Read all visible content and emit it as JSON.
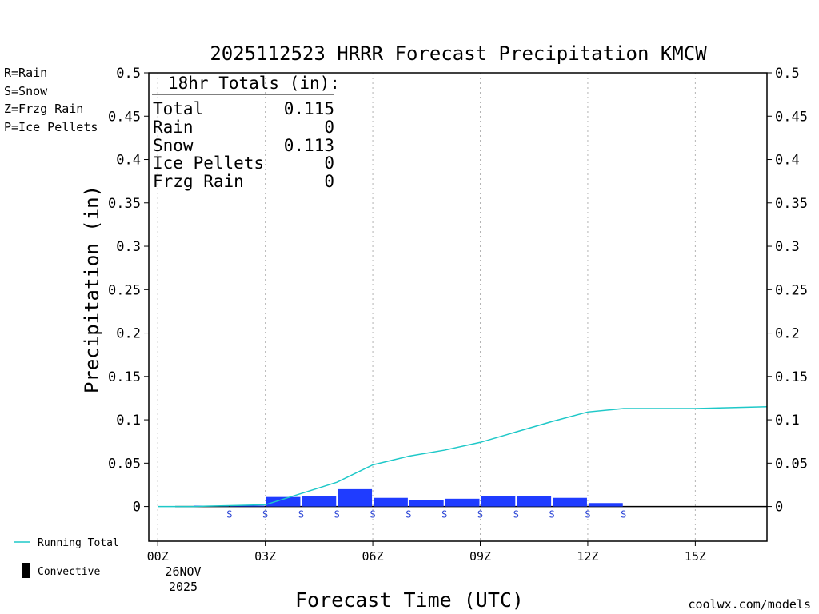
{
  "chart_data": {
    "type": "bar",
    "title": "2025112523 HRRR Forecast Precipitation KMCW",
    "xlabel": "Forecast Time (UTC)",
    "ylabel": "Precipitation (in)",
    "xlim": [
      -0.25,
      17
    ],
    "ylim": [
      -0.04,
      0.5
    ],
    "y_ticks": [
      0,
      0.05,
      0.1,
      0.15,
      0.2,
      0.25,
      0.3,
      0.35,
      0.4,
      0.45,
      0.5
    ],
    "y_tick_labels": [
      "0",
      "0.05",
      "0.1",
      "0.15",
      "0.2",
      "0.25",
      "0.3",
      "0.35",
      "0.4",
      "0.45",
      "0.5"
    ],
    "x_ticks": [
      0,
      3,
      6,
      9,
      12,
      15
    ],
    "x_tick_labels": [
      "00Z",
      "03Z",
      "06Z",
      "09Z",
      "12Z",
      "15Z"
    ],
    "x_date_label": [
      "26NOV",
      "2025"
    ],
    "grid_x": true,
    "bar_series": {
      "name": "Snow",
      "color": "#1f3cff",
      "hours": [
        1,
        2,
        3,
        4,
        5,
        6,
        7,
        8,
        9,
        10,
        11,
        12,
        13,
        14,
        15,
        16,
        17
      ],
      "values": [
        0,
        0.001,
        0.001,
        0.011,
        0.012,
        0.02,
        0.01,
        0.007,
        0.009,
        0.012,
        0.012,
        0.01,
        0.004,
        0,
        0,
        0,
        0
      ]
    },
    "ptype_markers": {
      "color": "#2a44d6",
      "hours": [
        2,
        3,
        4,
        5,
        6,
        7,
        8,
        9,
        10,
        11,
        12,
        13
      ],
      "labels": [
        "S",
        "S",
        "S",
        "S",
        "S",
        "S",
        "S",
        "S",
        "S",
        "S",
        "S",
        "S"
      ]
    },
    "running_total": {
      "name": "Running Total",
      "color": "#1ec8c8",
      "hours": [
        0,
        1,
        2,
        3,
        4,
        5,
        6,
        7,
        8,
        9,
        10,
        11,
        12,
        13,
        14,
        15,
        16,
        17
      ],
      "values": [
        0,
        0,
        0.001,
        0.002,
        0.015,
        0.028,
        0.048,
        0.058,
        0.065,
        0.074,
        0.086,
        0.098,
        0.109,
        0.113,
        0.113,
        0.113,
        0.114,
        0.115
      ]
    },
    "totals_box": {
      "header": "18hr Totals (in):",
      "rows": [
        {
          "label": "Total",
          "value": "0.115"
        },
        {
          "label": "Rain",
          "value": "0"
        },
        {
          "label": "Snow",
          "value": "0.113"
        },
        {
          "label": "Ice Pellets",
          "value": "0"
        },
        {
          "label": "Frzg Rain",
          "value": "0"
        }
      ]
    },
    "ptype_key": [
      {
        "text": "R=Rain",
        "color": "#22cc22"
      },
      {
        "text": "S=Snow",
        "color": "#3a4fe0"
      },
      {
        "text": "Z=Frzg Rain",
        "color": "#f0963c"
      },
      {
        "text": "P=Ice Pellets",
        "color": "#e0288c"
      }
    ],
    "legend": {
      "running_total_label": "Running Total",
      "convective_label": "Convective"
    }
  },
  "credit": "coolwx.com/models"
}
